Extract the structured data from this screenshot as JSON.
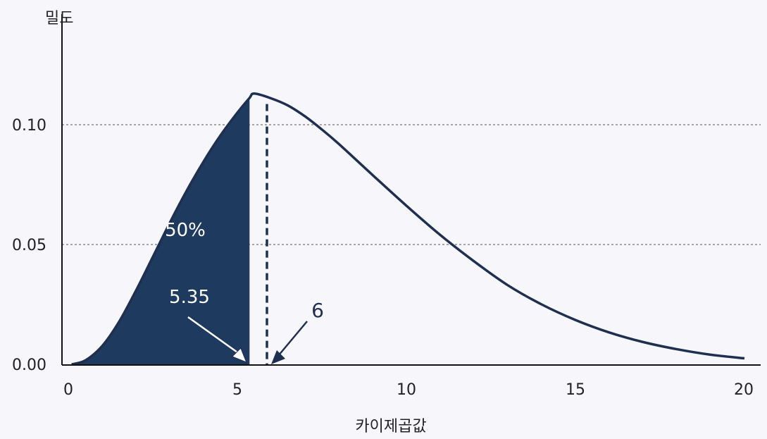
{
  "chart_data": {
    "type": "area",
    "ylabel": "밀도",
    "xlabel": "카이제곱값",
    "xlim": [
      0,
      20
    ],
    "ylim": [
      0,
      0.125
    ],
    "x_ticks": [
      "0",
      "5",
      "10",
      "15",
      "20"
    ],
    "y_ticks": [
      "0.00",
      "0.05",
      "0.10"
    ],
    "grid": "horizontal dashed at 0.05 and 0.10",
    "series": [
      {
        "df": 6,
        "x": [
          0.1,
          0.5,
          1,
          1.5,
          2,
          2.5,
          3,
          3.5,
          4,
          4.5,
          5,
          5.35,
          5.5,
          6,
          6.5,
          7,
          7.5,
          8,
          9,
          10,
          11,
          12,
          13,
          14,
          15,
          16,
          17,
          18,
          19,
          20
        ],
        "y": [
          0.0,
          0.0016,
          0.0076,
          0.0177,
          0.0307,
          0.0448,
          0.059,
          0.0724,
          0.0846,
          0.0955,
          0.105,
          0.111,
          0.113,
          0.111,
          0.108,
          0.1035,
          0.098,
          0.092,
          0.079,
          0.0662,
          0.054,
          0.043,
          0.033,
          0.025,
          0.0185,
          0.0133,
          0.0093,
          0.0063,
          0.004,
          0.0025
        ]
      }
    ],
    "shaded_region": {
      "from": 0,
      "to": 5.35,
      "label": "50%"
    },
    "annotations": [
      {
        "text": "5.35",
        "x": 5.35,
        "line": "solid"
      },
      {
        "text": "6",
        "x": 6,
        "line": "dashed"
      }
    ],
    "colors": {
      "fill": "#1f3a5f",
      "line": "#1f2f4f",
      "background": "#f6f6fb"
    }
  }
}
